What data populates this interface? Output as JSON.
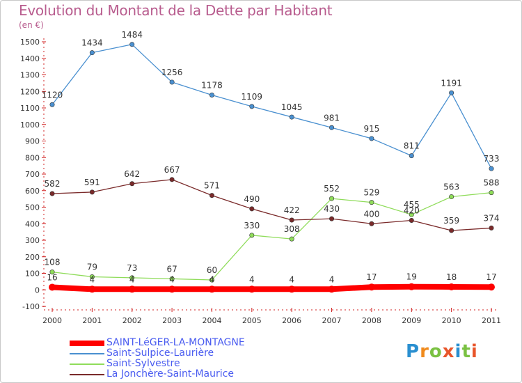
{
  "title": "Evolution du Montant de la Dette par Habitant",
  "subtitle": "(en €)",
  "logo": {
    "letters": [
      "P",
      "r",
      "o",
      "x",
      "i",
      "t",
      "i"
    ],
    "colors": [
      "#2a8fd0",
      "#f08a1c",
      "#7ac142",
      "#e8552a",
      "#2a8fd0",
      "#7ac142",
      "#e8552a"
    ]
  },
  "chart_data": {
    "type": "line",
    "x": [
      "2000",
      "2001",
      "2002",
      "2003",
      "2004",
      "2005",
      "2006",
      "2007",
      "2008",
      "2009",
      "2010",
      "2011"
    ],
    "ylim": [
      -100,
      1500
    ],
    "yticks": [
      -100,
      0,
      100,
      200,
      300,
      400,
      500,
      600,
      700,
      800,
      900,
      1000,
      1100,
      1200,
      1300,
      1400,
      1500
    ],
    "grid": false,
    "legend_position": "bottom",
    "series": [
      {
        "name": "SAINT-LéGER-LA-MONTAGNE",
        "color": "#ff0000",
        "values": [
          16,
          4,
          4,
          4,
          4,
          4,
          4,
          4,
          17,
          19,
          18,
          17
        ]
      },
      {
        "name": "Saint-Sulpice-Laurière",
        "color": "#4a90d0",
        "values": [
          1120,
          1434,
          1484,
          1256,
          1178,
          1109,
          1045,
          981,
          915,
          811,
          1191,
          733
        ]
      },
      {
        "name": "Saint-Sylvestre",
        "color": "#8fdc5a",
        "values": [
          108,
          79,
          73,
          67,
          60,
          330,
          308,
          552,
          529,
          455,
          563,
          588
        ]
      },
      {
        "name": "La Jonchère-Saint-Maurice",
        "color": "#7a2a2a",
        "values": [
          582,
          591,
          642,
          667,
          571,
          490,
          422,
          430,
          400,
          420,
          359,
          374
        ]
      }
    ]
  }
}
